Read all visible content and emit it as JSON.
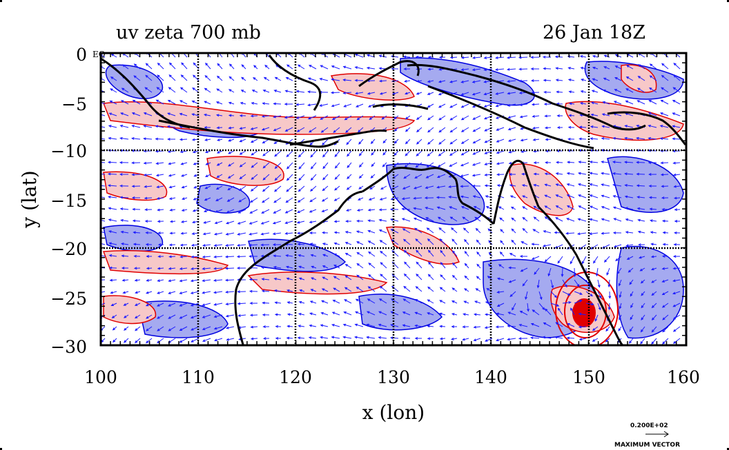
{
  "chart_data": {
    "type": "contour",
    "title_left": "uv zeta 700 mb",
    "title_right": "26 Jan 18Z",
    "xlabel": "x (lon)",
    "ylabel": "y (lat)",
    "xlim": [
      100,
      160
    ],
    "ylim": [
      -30,
      0
    ],
    "x_ticks": [
      "100",
      "110",
      "120",
      "130",
      "140",
      "150",
      "160"
    ],
    "y_ticks": [
      "0",
      "−5",
      "−10",
      "−15",
      "−20",
      "−25",
      "−30"
    ],
    "gridlines": [
      110,
      120,
      130,
      140,
      150,
      -10,
      -20
    ],
    "grid": true,
    "corner_label": "EQ",
    "vector_ref_value": "0.200E+02",
    "vector_ref_label": "MAXIMUM VECTOR",
    "colors": {
      "positive_fill": "#f7c8c8",
      "negative_fill": "#a5aaf0",
      "positive_contour": "#e00000",
      "negative_contour": "#0000e0",
      "vectors": "#1a1aff",
      "coastline": "#000000"
    }
  }
}
